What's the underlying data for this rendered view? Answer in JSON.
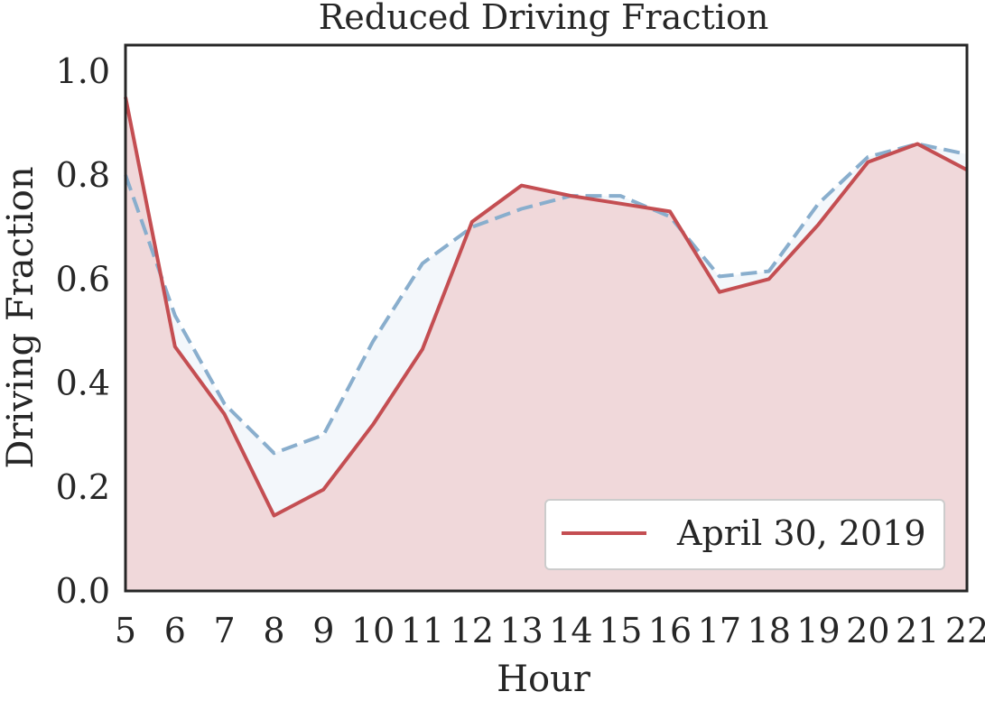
{
  "chart_data": {
    "type": "line",
    "title": "Reduced Driving Fraction",
    "xlabel": "Hour",
    "ylabel": "Driving Fraction",
    "xlim": [
      5,
      22
    ],
    "ylim": [
      0,
      1.05
    ],
    "x": [
      5,
      6,
      7,
      8,
      9,
      10,
      11,
      12,
      13,
      14,
      15,
      16,
      17,
      18,
      19,
      20,
      21,
      22
    ],
    "x_ticks": [
      "5",
      "6",
      "7",
      "8",
      "9",
      "10",
      "11",
      "12",
      "13",
      "14",
      "15",
      "16",
      "17",
      "18",
      "19",
      "20",
      "21",
      "22"
    ],
    "y_ticks": [
      "0.0",
      "0.2",
      "0.4",
      "0.6",
      "0.8",
      "1.0"
    ],
    "y_tick_values": [
      0,
      0.2,
      0.4,
      0.6,
      0.8,
      1.0
    ],
    "grid": false,
    "legend": {
      "position": "lower-right",
      "entries": [
        "April 30, 2019"
      ]
    },
    "series": [
      {
        "name": "April 30, 2019",
        "style": "solid",
        "color": "#c44e52",
        "fill": "#f0d8da",
        "values": [
          0.95,
          0.47,
          0.34,
          0.145,
          0.195,
          0.32,
          0.465,
          0.71,
          0.78,
          0.76,
          0.745,
          0.73,
          0.575,
          0.6,
          0.705,
          0.825,
          0.86,
          0.81
        ]
      },
      {
        "style": "dashed",
        "color": "#89aecd",
        "fill": "#f3f7fb",
        "values": [
          0.8,
          0.53,
          0.36,
          0.265,
          0.3,
          0.48,
          0.63,
          0.7,
          0.735,
          0.76,
          0.76,
          0.72,
          0.605,
          0.615,
          0.745,
          0.835,
          0.86,
          0.84
        ]
      }
    ]
  }
}
